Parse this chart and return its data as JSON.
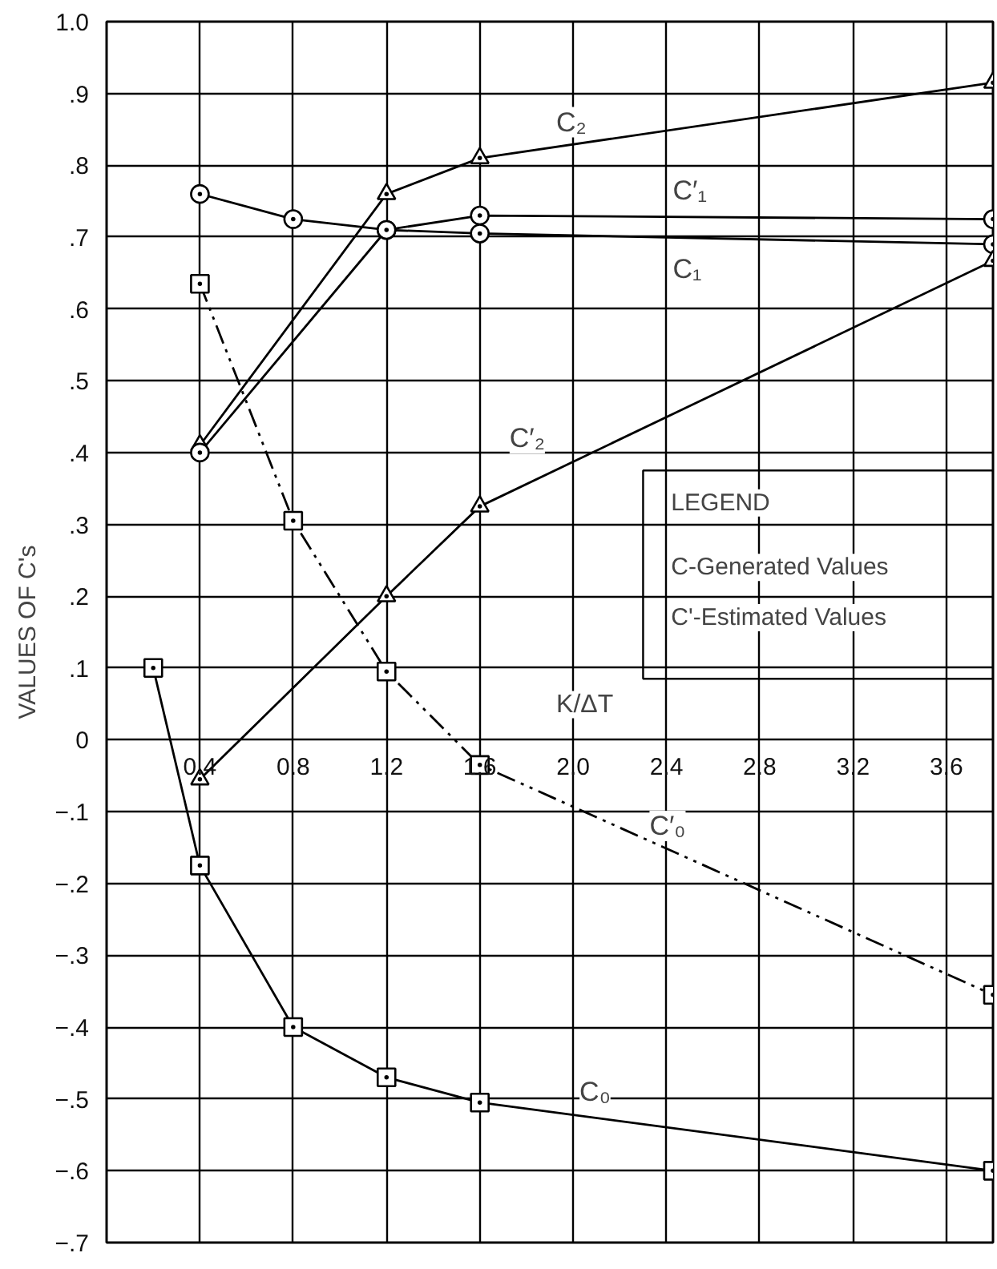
{
  "chart_data": {
    "type": "line",
    "xlabel": "K/ΔT",
    "ylabel": "VALUES OF C's",
    "xlim": [
      0,
      3.8
    ],
    "ylim": [
      -0.7,
      1.0
    ],
    "xticks": [
      0.4,
      0.8,
      1.2,
      1.6,
      {
        "value": 2.0,
        "label": "2.0"
      },
      2.4,
      2.8,
      3.2,
      3.6
    ],
    "yticks": [
      {
        "value": 1.0,
        "label": "1.0"
      },
      {
        "value": 0.9,
        "label": ".9"
      },
      {
        "value": 0.8,
        "label": ".8"
      },
      {
        "value": 0.7,
        "label": ".7"
      },
      {
        "value": 0.6,
        "label": ".6"
      },
      {
        "value": 0.5,
        "label": ".5"
      },
      {
        "value": 0.4,
        "label": ".4"
      },
      {
        "value": 0.3,
        "label": ".3"
      },
      {
        "value": 0.2,
        "label": ".2"
      },
      {
        "value": 0.1,
        "label": ".1"
      },
      0,
      {
        "value": -0.1,
        "label": "−.1"
      },
      {
        "value": -0.2,
        "label": "−.2"
      },
      {
        "value": -0.3,
        "label": "−.3"
      },
      {
        "value": -0.4,
        "label": "−.4"
      },
      {
        "value": -0.5,
        "label": "−.5"
      },
      {
        "value": -0.6,
        "label": "−.6"
      },
      {
        "value": -0.7,
        "label": "−.7"
      }
    ],
    "grid": true,
    "series": [
      {
        "name": "C₂",
        "color": "#000000",
        "marker": "triangle",
        "line_style": "solid",
        "x": [
          0.4,
          1.2,
          1.6,
          3.8
        ],
        "values": [
          0.41,
          0.76,
          0.81,
          0.915
        ]
      },
      {
        "name": "C′₁",
        "color": "#000000",
        "marker": "circle",
        "line_style": "solid",
        "x": [
          0.4,
          1.2,
          1.6,
          3.8
        ],
        "values": [
          0.4,
          0.71,
          0.73,
          0.725
        ]
      },
      {
        "name": "C₁",
        "color": "#000000",
        "marker": "circle",
        "line_style": "solid",
        "x": [
          0.4,
          0.8,
          1.2,
          1.6,
          3.8
        ],
        "values": [
          0.76,
          0.725,
          0.71,
          0.705,
          0.69
        ]
      },
      {
        "name": "C′₂",
        "color": "#000000",
        "marker": "triangle",
        "line_style": "solid",
        "x": [
          0.4,
          1.2,
          1.6,
          3.8
        ],
        "values": [
          -0.055,
          0.2,
          0.325,
          0.667
        ]
      },
      {
        "name": "C′₀",
        "color": "#000000",
        "marker": "square",
        "line_style": "dashed",
        "x": [
          0.4,
          0.8,
          1.2,
          1.6,
          3.8
        ],
        "values": [
          0.635,
          0.305,
          0.095,
          -0.035,
          -0.355
        ]
      },
      {
        "name": "C₀",
        "color": "#000000",
        "marker": "square",
        "line_style": "solid",
        "x": [
          0.2,
          0.4,
          0.8,
          1.2,
          1.6,
          3.8
        ],
        "values": [
          0.1,
          -0.175,
          -0.4,
          -0.47,
          -0.505,
          -0.6
        ]
      }
    ],
    "annotations": [
      "LEGEND",
      "C-Generated Values",
      "C'-Estimated Values"
    ]
  }
}
